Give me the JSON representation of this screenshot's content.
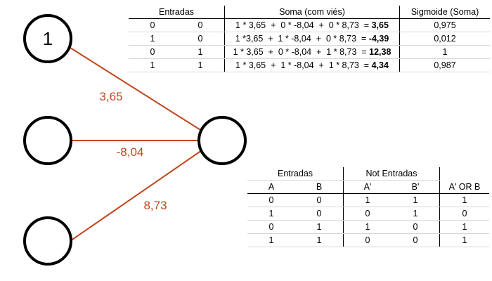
{
  "network": {
    "input_labels": [
      "1",
      "",
      ""
    ],
    "weights": [
      "3,65",
      "-8,04",
      "8,73"
    ]
  },
  "table1": {
    "headers": {
      "entradas": "Entradas",
      "soma": "Soma (com viés)",
      "sigmoide": "Sigmoide (Soma)"
    },
    "rows": [
      {
        "a": "0",
        "b": "0",
        "expr": "1 * 3,65  +  0 * -8,04  +  0 * 8,73  = ",
        "result": "3,65",
        "sig": "0,975"
      },
      {
        "a": "1",
        "b": "0",
        "expr": "1 *3,65  +  1 * -8,04  +  0 * 8,73  = ",
        "result": "-4,39",
        "sig": "0,012"
      },
      {
        "a": "0",
        "b": "1",
        "expr": "1 * 3,65  +  0 * -8,04  +  1 * 8,73  = ",
        "result": "12,38",
        "sig": "1"
      },
      {
        "a": "1",
        "b": "1",
        "expr": "1 * 3,65  +  1 * -8,04  +  1 * 8,73  = ",
        "result": "4,34",
        "sig": "0,987"
      }
    ]
  },
  "table2": {
    "group_headers": {
      "entradas": "Entradas",
      "not_entradas": "Not Entradas"
    },
    "columns": [
      "A",
      "B",
      "A'",
      "B'",
      "A' OR B"
    ],
    "rows": [
      [
        "0",
        "0",
        "1",
        "1",
        "1"
      ],
      [
        "1",
        "0",
        "0",
        "1",
        "0"
      ],
      [
        "0",
        "1",
        "1",
        "0",
        "1"
      ],
      [
        "1",
        "1",
        "0",
        "0",
        "1"
      ]
    ]
  }
}
